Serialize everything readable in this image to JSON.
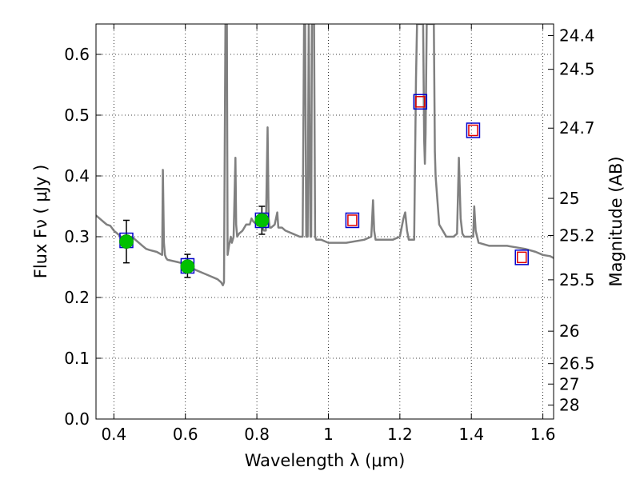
{
  "chart_data": {
    "type": "line",
    "xlabel": "Wavelength  λ (μm)",
    "ylabel": "Flux  Fν  ( μJy )",
    "y2label": "Magnitude (AB)",
    "xlim": [
      0.35,
      1.63
    ],
    "ylim": [
      0.0,
      0.65
    ],
    "grid": true,
    "x_ticks": [
      {
        "value": 0.4,
        "label": "0.4"
      },
      {
        "value": 0.6,
        "label": "0.6"
      },
      {
        "value": 0.8,
        "label": "0.8"
      },
      {
        "value": 1.0,
        "label": "1"
      },
      {
        "value": 1.2,
        "label": "1.2"
      },
      {
        "value": 1.4,
        "label": "1.4"
      },
      {
        "value": 1.6,
        "label": "1.6"
      }
    ],
    "y_ticks": [
      {
        "value": 0.0,
        "label": "0.0"
      },
      {
        "value": 0.1,
        "label": "0.1"
      },
      {
        "value": 0.2,
        "label": "0.2"
      },
      {
        "value": 0.3,
        "label": "0.3"
      },
      {
        "value": 0.4,
        "label": "0.4"
      },
      {
        "value": 0.5,
        "label": "0.5"
      },
      {
        "value": 0.6,
        "label": "0.6"
      }
    ],
    "y2_ticks": [
      {
        "value": 24.4,
        "label": "24.4"
      },
      {
        "value": 24.5,
        "label": "24.5"
      },
      {
        "value": 24.7,
        "label": "24.7"
      },
      {
        "value": 25.0,
        "label": "25"
      },
      {
        "value": 25.2,
        "label": "25.2"
      },
      {
        "value": 25.5,
        "label": "25.5"
      },
      {
        "value": 26.0,
        "label": "26"
      },
      {
        "value": 26.5,
        "label": "26.5"
      },
      {
        "value": 27.0,
        "label": "27"
      },
      {
        "value": 28.0,
        "label": "28"
      }
    ],
    "series": [
      {
        "kind": "sed_model",
        "color": "#808080",
        "x": [
          0.35,
          0.36,
          0.37,
          0.38,
          0.39,
          0.4,
          0.41,
          0.42,
          0.43,
          0.45,
          0.47,
          0.48,
          0.49,
          0.5,
          0.52,
          0.535,
          0.537,
          0.54,
          0.543,
          0.546,
          0.55,
          0.58,
          0.6,
          0.63,
          0.65,
          0.67,
          0.69,
          0.7,
          0.705,
          0.708,
          0.712,
          0.714,
          0.716,
          0.718,
          0.722,
          0.727,
          0.73,
          0.735,
          0.74,
          0.742,
          0.745,
          0.75,
          0.76,
          0.77,
          0.78,
          0.785,
          0.79,
          0.8,
          0.81,
          0.82,
          0.825,
          0.83,
          0.833,
          0.836,
          0.84,
          0.85,
          0.857,
          0.86,
          0.865,
          0.87,
          0.88,
          0.9,
          0.92,
          0.928,
          0.932,
          0.935,
          0.938,
          0.942,
          0.945,
          0.95,
          0.952,
          0.954,
          0.957,
          0.96,
          0.963,
          0.966,
          0.97,
          0.98,
          1.0,
          1.05,
          1.1,
          1.12,
          1.125,
          1.128,
          1.132,
          1.135,
          1.14,
          1.18,
          1.2,
          1.21,
          1.215,
          1.22,
          1.225,
          1.24,
          1.245,
          1.248,
          1.255,
          1.258,
          1.262,
          1.265,
          1.268,
          1.27,
          1.272,
          1.275,
          1.28,
          1.29,
          1.295,
          1.298,
          1.3,
          1.31,
          1.33,
          1.35,
          1.36,
          1.365,
          1.37,
          1.375,
          1.38,
          1.4,
          1.405,
          1.408,
          1.412,
          1.42,
          1.45,
          1.5,
          1.55,
          1.58,
          1.6,
          1.62,
          1.63
        ],
        "y": [
          0.335,
          0.33,
          0.325,
          0.32,
          0.318,
          0.31,
          0.305,
          0.3,
          0.295,
          0.3,
          0.29,
          0.285,
          0.28,
          0.278,
          0.275,
          0.27,
          0.41,
          0.29,
          0.27,
          0.265,
          0.262,
          0.258,
          0.255,
          0.245,
          0.24,
          0.235,
          0.23,
          0.225,
          0.22,
          0.225,
          0.65,
          0.65,
          0.65,
          0.27,
          0.285,
          0.3,
          0.29,
          0.3,
          0.43,
          0.32,
          0.3,
          0.305,
          0.31,
          0.32,
          0.32,
          0.33,
          0.325,
          0.32,
          0.32,
          0.31,
          0.31,
          0.48,
          0.33,
          0.315,
          0.315,
          0.32,
          0.34,
          0.315,
          0.315,
          0.315,
          0.31,
          0.305,
          0.3,
          0.3,
          0.65,
          0.65,
          0.3,
          0.3,
          0.65,
          0.3,
          0.3,
          0.65,
          0.65,
          0.65,
          0.3,
          0.295,
          0.295,
          0.295,
          0.29,
          0.29,
          0.295,
          0.3,
          0.36,
          0.31,
          0.295,
          0.295,
          0.295,
          0.295,
          0.3,
          0.33,
          0.34,
          0.31,
          0.295,
          0.295,
          0.56,
          0.65,
          0.65,
          0.65,
          0.65,
          0.65,
          0.46,
          0.42,
          0.47,
          0.65,
          0.65,
          0.65,
          0.65,
          0.44,
          0.4,
          0.32,
          0.3,
          0.3,
          0.305,
          0.43,
          0.33,
          0.305,
          0.3,
          0.3,
          0.3,
          0.35,
          0.31,
          0.29,
          0.285,
          0.285,
          0.28,
          0.275,
          0.27,
          0.268,
          0.265
        ]
      },
      {
        "kind": "measured_photometry",
        "color": "#00c000",
        "x": [
          0.435,
          0.606,
          0.814
        ],
        "y": [
          0.292,
          0.251,
          0.327
        ],
        "yerr_low": [
          0.035,
          0.018,
          0.023
        ],
        "yerr_high": [
          0.035,
          0.02,
          0.023
        ]
      },
      {
        "kind": "model_photometry_blue_boxes",
        "color": "#0000cc",
        "x": [
          0.435,
          0.606,
          0.814,
          1.067,
          1.257,
          1.405,
          1.541
        ],
        "y": [
          0.294,
          0.252,
          0.327,
          0.327,
          0.522,
          0.475,
          0.266
        ]
      },
      {
        "kind": "model_photometry_red_boxes",
        "color": "#e00000",
        "x": [
          1.067,
          1.257,
          1.405,
          1.541
        ],
        "y": [
          0.327,
          0.522,
          0.475,
          0.266
        ]
      }
    ]
  }
}
